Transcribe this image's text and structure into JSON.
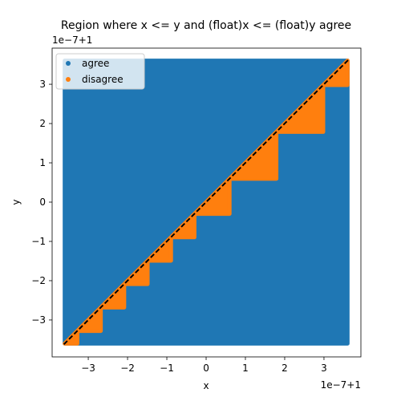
{
  "chart_data": {
    "type": "scatter",
    "title": "Region where x <= y and (float)x <= (float)y agree",
    "x_label": "x",
    "y_label": "y",
    "x_offset": "1e−7+1",
    "y_offset": "1e−7+1",
    "xlim": [
      -3.92,
      3.94
    ],
    "ylim": [
      -3.94,
      3.92
    ],
    "xticks": [
      {
        "value": -3,
        "label": "−3"
      },
      {
        "value": -2,
        "label": "−2"
      },
      {
        "value": -1,
        "label": "−1"
      },
      0,
      1,
      2,
      3
    ],
    "yticks": [
      {
        "value": -3,
        "label": "−3"
      },
      {
        "value": -2,
        "label": "−2"
      },
      {
        "value": -1,
        "label": "−1"
      },
      0,
      1,
      2,
      3
    ],
    "legend": "upper left",
    "diagonal": true,
    "series": [
      {
        "name": "agree",
        "color": "#1f77b4",
        "x": [
          -3.6,
          3.6,
          3.6,
          -3.6
        ],
        "y": [
          -3.6,
          -3.6,
          3.6,
          3.6
        ]
      },
      {
        "name": "disagree",
        "color": "#ff7f0e",
        "x": [
          -3.6,
          -3.278,
          -3.278,
          null,
          -3.278,
          -2.682,
          -2.682,
          null,
          -2.682,
          -2.086,
          -2.086,
          null,
          -2.086,
          -1.49,
          -1.49,
          null,
          -1.49,
          -0.894,
          -0.894,
          null,
          -0.894,
          -0.298,
          -0.298,
          null,
          -0.298,
          0.596,
          0.596,
          null,
          0.596,
          1.788,
          1.788,
          null,
          1.788,
          2.98,
          2.98,
          null,
          2.98,
          3.6,
          3.6
        ],
        "y": [
          -3.6,
          -3.278,
          -3.6,
          null,
          -3.278,
          -2.682,
          -3.278,
          null,
          -2.682,
          -2.086,
          -2.682,
          null,
          -2.086,
          -1.49,
          -2.086,
          null,
          -1.49,
          -0.894,
          -1.49,
          null,
          -0.894,
          -0.298,
          -0.894,
          null,
          -0.298,
          0.596,
          -0.298,
          null,
          0.596,
          1.788,
          0.596,
          null,
          1.788,
          2.98,
          1.788,
          null,
          2.98,
          3.6,
          2.98
        ]
      }
    ]
  }
}
